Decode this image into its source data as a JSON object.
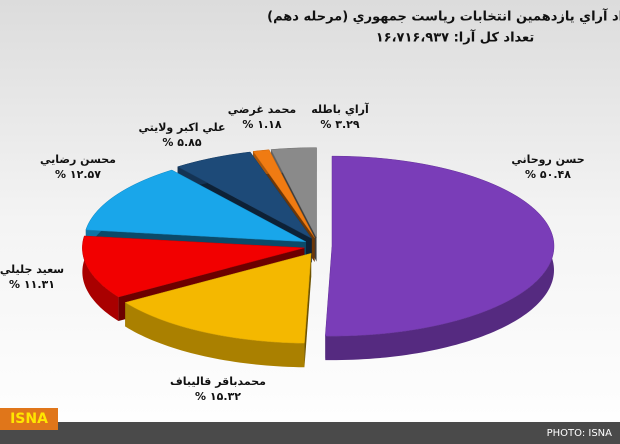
{
  "chart_data": {
    "type": "pie3d",
    "title": "تعداد آراي يازدهمين انتخابات رياست جمهوري (مرحله دهم)",
    "subtitle": "تعداد كل آرا: ۱۶،۷۱۶،۹۳۷",
    "categories": [
      "حسن روحاني",
      "محمدباقر قاليباف",
      "سعيد جليلي",
      "محسن رضايي",
      "علي اكبر ولايتي",
      "محمد غرضي",
      "آراي باطله"
    ],
    "values": [
      50.48,
      15.32,
      11.31,
      12.57,
      5.85,
      1.18,
      3.29
    ],
    "value_labels": [
      "% ۵۰.۴۸",
      "% ۱۵.۳۲",
      "% ۱۱.۳۱",
      "% ۱۲.۵۷",
      "% ۵.۸۵",
      "% ۱.۱۸",
      "% ۳.۲۹"
    ],
    "colors": [
      "#7a3db8",
      "#f4b800",
      "#f20000",
      "#19a6ea",
      "#1d4a78",
      "#f07b12",
      "#8a8a8a"
    ],
    "logo": "ISNA",
    "credit": "PHOTO: ISNA"
  }
}
